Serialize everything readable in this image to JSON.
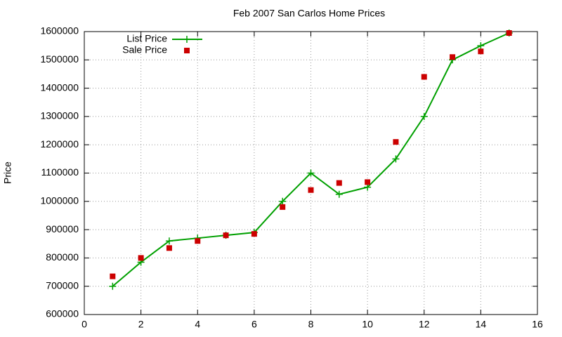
{
  "chart_data": {
    "type": "line",
    "title": "Feb 2007 San Carlos Home Prices",
    "y_label": "Price",
    "x": [
      1,
      2,
      3,
      4,
      5,
      6,
      7,
      8,
      9,
      10,
      11,
      12,
      13,
      14,
      15
    ],
    "series": [
      {
        "name": "List Price",
        "color": "#00a000",
        "mode": "linespoints",
        "values": [
          700000,
          785000,
          860000,
          870000,
          880000,
          890000,
          1000000,
          1100000,
          1025000,
          1050000,
          1150000,
          1300000,
          1500000,
          1550000,
          1595000
        ]
      },
      {
        "name": "Sale Price",
        "color": "#cc0000",
        "mode": "points",
        "values": [
          735000,
          800000,
          835000,
          860000,
          880000,
          885000,
          980000,
          1040000,
          1065000,
          1068000,
          1210000,
          1440000,
          1510000,
          1530000,
          1595000
        ]
      }
    ],
    "xlim": [
      0,
      16
    ],
    "xticks": [
      0,
      2,
      4,
      6,
      8,
      10,
      12,
      14,
      16
    ],
    "ylim": [
      600000,
      1600000
    ],
    "yticks": [
      600000,
      700000,
      800000,
      900000,
      1000000,
      1100000,
      1200000,
      1300000,
      1400000,
      1500000,
      1600000
    ],
    "grid": true,
    "legend": "top-left"
  }
}
